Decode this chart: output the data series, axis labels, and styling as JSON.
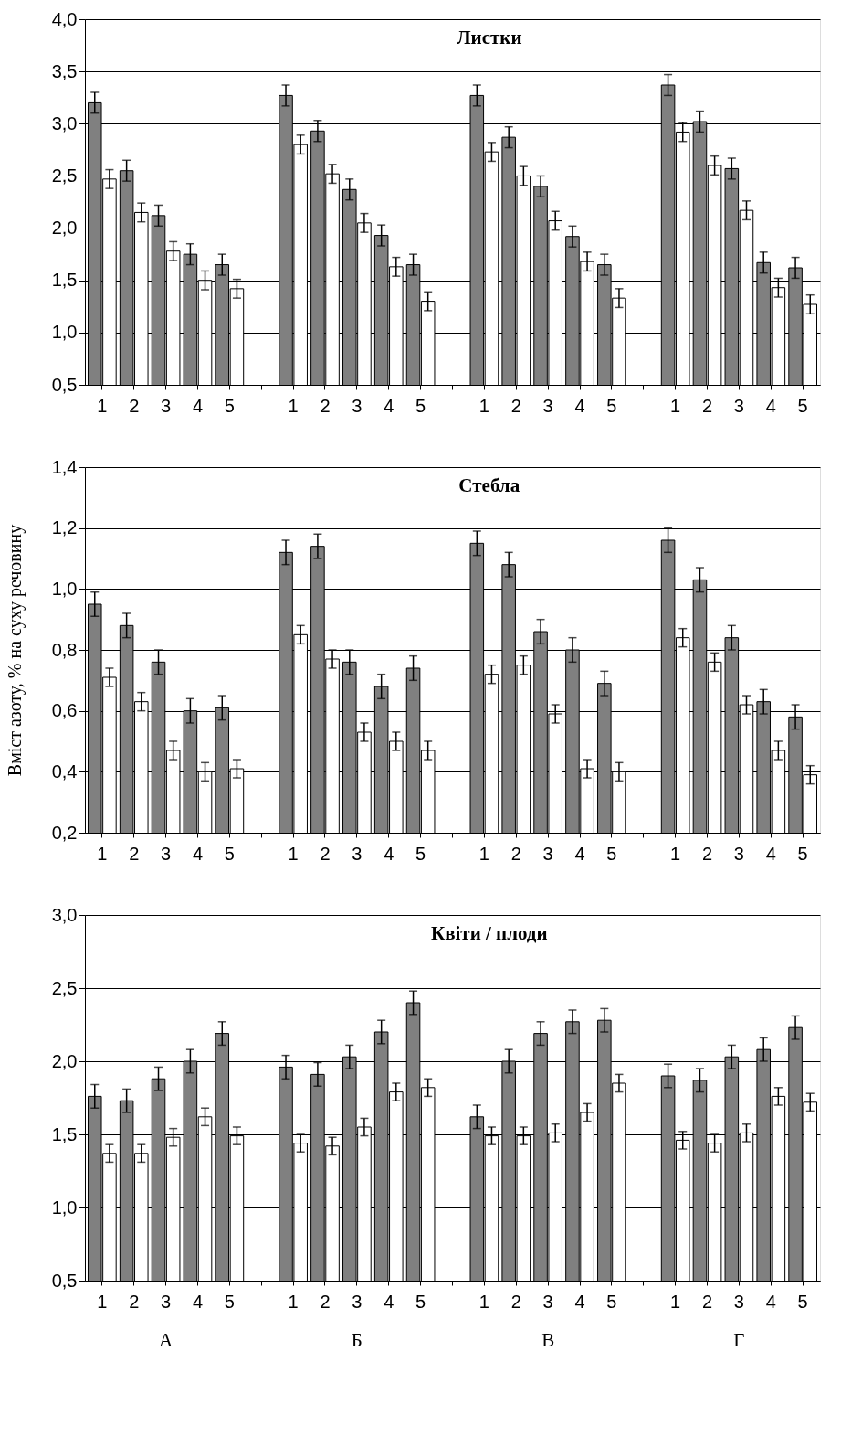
{
  "chart_data": [
    {
      "type": "bar",
      "title": "Листки",
      "categories": [
        "1",
        "2",
        "3",
        "4",
        "5",
        null,
        "1",
        "2",
        "3",
        "4",
        "5",
        null,
        "1",
        "2",
        "3",
        "4",
        "5",
        null,
        "1",
        "2",
        "3",
        "4",
        "5"
      ],
      "series": [
        {
          "color": "#808080",
          "values": [
            3.2,
            2.55,
            2.12,
            1.75,
            1.65,
            null,
            3.27,
            2.93,
            2.37,
            1.93,
            1.65,
            null,
            3.27,
            2.87,
            2.4,
            1.92,
            1.65,
            null,
            3.37,
            3.02,
            2.57,
            1.67,
            1.62
          ],
          "errors": [
            0.1,
            0.1,
            0.1,
            0.1,
            0.1,
            null,
            0.1,
            0.1,
            0.1,
            0.1,
            0.1,
            null,
            0.1,
            0.1,
            0.1,
            0.1,
            0.1,
            null,
            0.1,
            0.1,
            0.1,
            0.1,
            0.1
          ]
        },
        {
          "color": "#ffffff",
          "values": [
            2.47,
            2.15,
            1.78,
            1.5,
            1.42,
            null,
            2.8,
            2.52,
            2.05,
            1.63,
            1.3,
            null,
            2.73,
            2.5,
            2.07,
            1.68,
            1.33,
            null,
            2.92,
            2.6,
            2.17,
            1.43,
            1.27
          ],
          "errors": [
            0.09,
            0.09,
            0.09,
            0.09,
            0.09,
            null,
            0.09,
            0.09,
            0.09,
            0.09,
            0.09,
            null,
            0.09,
            0.09,
            0.09,
            0.09,
            0.09,
            null,
            0.09,
            0.09,
            0.09,
            0.09,
            0.09
          ]
        }
      ],
      "ylim": [
        0.5,
        4.0
      ],
      "yticks": [
        {
          "value": 0.5,
          "label": "0,5"
        },
        {
          "value": 1.0,
          "label": "1,0"
        },
        {
          "value": 1.5,
          "label": "1,5"
        },
        {
          "value": 2.0,
          "label": "2,0"
        },
        {
          "value": 2.5,
          "label": "2,5"
        },
        {
          "value": 3.0,
          "label": "3,0"
        },
        {
          "value": 3.5,
          "label": "3,5"
        },
        {
          "value": 4.0,
          "label": "4,0"
        }
      ],
      "grid": "y"
    },
    {
      "type": "bar",
      "title": "Стебла",
      "ylabel": "Вміст азоту,  % на суху речовину",
      "categories": [
        "1",
        "2",
        "3",
        "4",
        "5",
        null,
        "1",
        "2",
        "3",
        "4",
        "5",
        null,
        "1",
        "2",
        "3",
        "4",
        "5",
        null,
        "1",
        "2",
        "3",
        "4",
        "5"
      ],
      "series": [
        {
          "color": "#808080",
          "values": [
            0.95,
            0.88,
            0.76,
            0.6,
            0.61,
            null,
            1.12,
            1.14,
            0.76,
            0.68,
            0.74,
            null,
            1.15,
            1.08,
            0.86,
            0.8,
            0.69,
            null,
            1.16,
            1.03,
            0.84,
            0.63,
            0.58
          ],
          "errors": [
            0.04,
            0.04,
            0.04,
            0.04,
            0.04,
            null,
            0.04,
            0.04,
            0.04,
            0.04,
            0.04,
            null,
            0.04,
            0.04,
            0.04,
            0.04,
            0.04,
            null,
            0.04,
            0.04,
            0.04,
            0.04,
            0.04
          ]
        },
        {
          "color": "#ffffff",
          "values": [
            0.71,
            0.63,
            0.47,
            0.4,
            0.41,
            null,
            0.85,
            0.77,
            0.53,
            0.5,
            0.47,
            null,
            0.72,
            0.75,
            0.59,
            0.41,
            0.4,
            null,
            0.84,
            0.76,
            0.62,
            0.47,
            0.39
          ],
          "errors": [
            0.03,
            0.03,
            0.03,
            0.03,
            0.03,
            null,
            0.03,
            0.03,
            0.03,
            0.03,
            0.03,
            null,
            0.03,
            0.03,
            0.03,
            0.03,
            0.03,
            null,
            0.03,
            0.03,
            0.03,
            0.03,
            0.03
          ]
        }
      ],
      "ylim": [
        0.2,
        1.4
      ],
      "yticks": [
        {
          "value": 0.2,
          "label": "0,2"
        },
        {
          "value": 0.4,
          "label": "0,4"
        },
        {
          "value": 0.6,
          "label": "0,6"
        },
        {
          "value": 0.8,
          "label": "0,8"
        },
        {
          "value": 1.0,
          "label": "1,0"
        },
        {
          "value": 1.2,
          "label": "1,2"
        },
        {
          "value": 1.4,
          "label": "1,4"
        }
      ],
      "grid": "y"
    },
    {
      "type": "bar",
      "title": "Квіти / плоди",
      "categories": [
        "1",
        "2",
        "3",
        "4",
        "5",
        null,
        "1",
        "2",
        "3",
        "4",
        "5",
        null,
        "1",
        "2",
        "3",
        "4",
        "5",
        null,
        "1",
        "2",
        "3",
        "4",
        "5"
      ],
      "series": [
        {
          "color": "#808080",
          "values": [
            1.76,
            1.73,
            1.88,
            2.0,
            2.19,
            null,
            1.96,
            1.91,
            2.03,
            2.2,
            2.4,
            null,
            1.62,
            2.0,
            2.19,
            2.27,
            2.28,
            null,
            1.9,
            1.87,
            2.03,
            2.08,
            2.23
          ],
          "errors": [
            0.08,
            0.08,
            0.08,
            0.08,
            0.08,
            null,
            0.08,
            0.08,
            0.08,
            0.08,
            0.08,
            null,
            0.08,
            0.08,
            0.08,
            0.08,
            0.08,
            null,
            0.08,
            0.08,
            0.08,
            0.08,
            0.08
          ]
        },
        {
          "color": "#ffffff",
          "values": [
            1.37,
            1.37,
            1.48,
            1.62,
            1.49,
            null,
            1.44,
            1.42,
            1.55,
            1.79,
            1.82,
            null,
            1.49,
            1.49,
            1.51,
            1.65,
            1.85,
            null,
            1.46,
            1.44,
            1.51,
            1.76,
            1.72
          ],
          "errors": [
            0.06,
            0.06,
            0.06,
            0.06,
            0.06,
            null,
            0.06,
            0.06,
            0.06,
            0.06,
            0.06,
            null,
            0.06,
            0.06,
            0.06,
            0.06,
            0.06,
            null,
            0.06,
            0.06,
            0.06,
            0.06,
            0.06
          ]
        }
      ],
      "ylim": [
        0.5,
        3.0
      ],
      "yticks": [
        {
          "value": 0.5,
          "label": "0,5"
        },
        {
          "value": 1.0,
          "label": "1,0"
        },
        {
          "value": 1.5,
          "label": "1,5"
        },
        {
          "value": 2.0,
          "label": "2,0"
        },
        {
          "value": 2.5,
          "label": "2,5"
        },
        {
          "value": 3.0,
          "label": "3,0"
        }
      ],
      "grid": "y",
      "annotations": [
        "А",
        "Б",
        "В",
        "Г"
      ]
    }
  ]
}
